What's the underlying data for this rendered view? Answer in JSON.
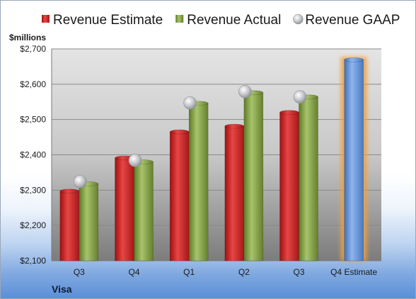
{
  "chart_data": {
    "type": "bar",
    "company": "Visa",
    "ylabel": "$millions",
    "ylim": [
      2100,
      2700
    ],
    "yticks": [
      "$2,100",
      "$2,200",
      "$2,300",
      "$2,400",
      "$2,500",
      "$2,600",
      "$2,700"
    ],
    "ytick_values": [
      2100,
      2200,
      2300,
      2400,
      2500,
      2600,
      2700
    ],
    "categories": [
      "Q3",
      "Q4",
      "Q1",
      "Q2",
      "Q3",
      "Q4 Estimate"
    ],
    "series": [
      {
        "name": "Revenue Estimate",
        "type": "bar",
        "color": "#d42a2a",
        "values": [
          2297,
          2391,
          2465,
          2481,
          2520,
          null
        ]
      },
      {
        "name": "Revenue Actual",
        "type": "bar",
        "color": "#8caa4a",
        "values": [
          2318,
          2380,
          2546,
          2576,
          2564,
          null
        ]
      },
      {
        "name": "Revenue GAAP",
        "type": "scatter",
        "color": "#b5b8bd",
        "values": [
          2324,
          2384,
          2547,
          2579,
          2564,
          null
        ]
      }
    ],
    "estimate": {
      "category": "Q4 Estimate",
      "value": 2669,
      "color": "#6f9fe0",
      "highlight": "#f0a040"
    },
    "grid": true,
    "legend_position": "top"
  }
}
